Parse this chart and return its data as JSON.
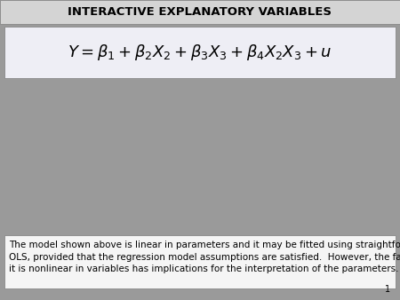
{
  "title": "INTERACTIVE EXPLANATORY VARIABLES",
  "title_fontsize": 9.5,
  "title_bg_color": "#d4d4d4",
  "main_bg_color": "#9a9a9a",
  "formula_bg_color": "#eeeef5",
  "formula": "$Y = \\beta_1 + \\beta_2 X_2 + \\beta_3 X_3 + \\beta_4 X_2 X_3 + u$",
  "formula_fontsize": 13,
  "body_text": "The model shown above is linear in parameters and it may be fitted using straightforward\nOLS, provided that the regression model assumptions are satisfied.  However, the fact that\nit is nonlinear in variables has implications for the interpretation of the parameters.",
  "body_fontsize": 7.5,
  "body_bg_color": "#f5f5f5",
  "page_number": "1",
  "border_color": "#888888",
  "fig_width": 4.5,
  "fig_height": 3.38,
  "dpi": 100
}
